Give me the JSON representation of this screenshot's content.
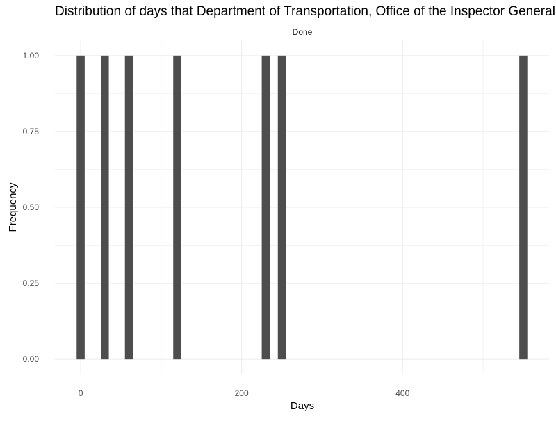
{
  "chart_data": {
    "type": "bar",
    "title": "Distribution of days that Department of Transportation, Office of the Inspector General took to fulfill FOIA requests",
    "facet_label": "Done",
    "xlabel": "Days",
    "ylabel": "Frequency",
    "x": [
      0,
      30,
      60,
      120,
      230,
      250,
      550
    ],
    "values": [
      1,
      1,
      1,
      1,
      1,
      1,
      1
    ],
    "bin_width": 10,
    "xlim": [
      -32,
      582
    ],
    "ylim": [
      -0.05,
      1.05
    ],
    "x_ticks": [
      0,
      200,
      400
    ],
    "x_tick_labels": [
      "0",
      "200",
      "400"
    ],
    "y_ticks": [
      0,
      0.25,
      0.5,
      0.75,
      1
    ],
    "y_tick_labels": [
      "0.00",
      "0.25",
      "0.50",
      "0.75",
      "1.00"
    ],
    "bar_color": "#4d4d4d",
    "grid": true,
    "legend": "none"
  }
}
